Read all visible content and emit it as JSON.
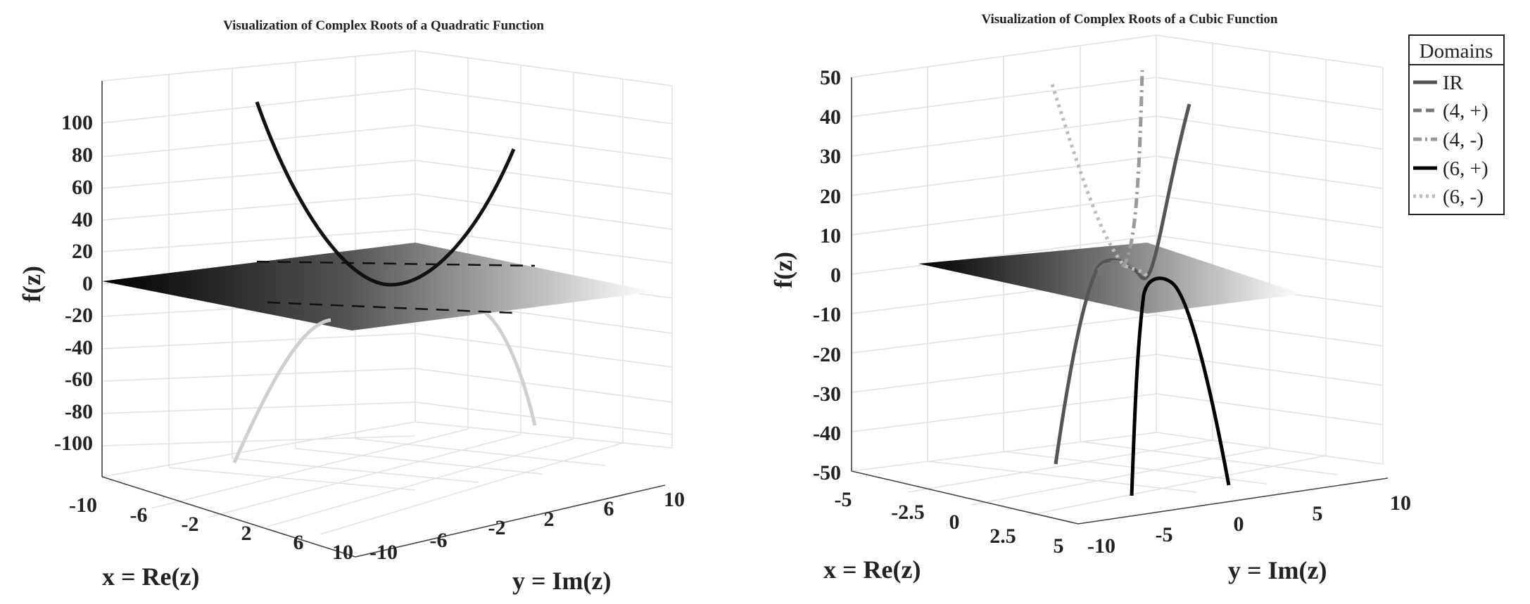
{
  "chart_data": [
    {
      "type": "3d-line",
      "title": "Visualization of Complex Roots of a Quadratic Function",
      "xlabel": "x = Re(z)",
      "ylabel": "y = Im(z)",
      "zlabel": "f(z)",
      "xlim": [
        -10,
        10
      ],
      "ylim": [
        -10,
        10
      ],
      "zlim": [
        -120,
        120
      ],
      "x_ticks": [
        "-10",
        "-6",
        "-2",
        "2",
        "6",
        "10"
      ],
      "y_ticks": [
        "-10",
        "-6",
        "-2",
        "2",
        "6",
        "10"
      ],
      "z_ticks": [
        "100",
        "80",
        "60",
        "40",
        "20",
        "0",
        "-20",
        "-40",
        "-60",
        "-80",
        "-100"
      ],
      "curves": [
        {
          "style": "solid",
          "color": "#111111",
          "x": [
            -10,
            -8,
            -6,
            -4,
            -2,
            0,
            2,
            4,
            6,
            8,
            10
          ],
          "y": [
            0,
            0,
            0,
            0,
            0,
            0,
            0,
            0,
            0,
            0,
            0
          ],
          "z": [
            100,
            64,
            36,
            16,
            4,
            0,
            4,
            16,
            36,
            64,
            100
          ]
        },
        {
          "style": "solid",
          "color": "#cccccc",
          "x": [
            0,
            0,
            0,
            0,
            0,
            0,
            0,
            0,
            0,
            0,
            0
          ],
          "y": [
            -10,
            -8,
            -6,
            -4,
            -2,
            0,
            2,
            4,
            6,
            8,
            10
          ],
          "z": [
            -100,
            -64,
            -36,
            -16,
            -4,
            0,
            -4,
            -16,
            -36,
            -64,
            -100
          ]
        },
        {
          "style": "dashed",
          "color": "#111111",
          "x": [
            -10,
            10
          ],
          "y": [
            0,
            0
          ],
          "z": [
            0,
            0
          ]
        },
        {
          "style": "dashed",
          "color": "#111111",
          "x": [
            0,
            0
          ],
          "y": [
            -10,
            10
          ],
          "z": [
            0,
            0
          ]
        }
      ]
    },
    {
      "type": "3d-line",
      "title": "Visualization of Complex Roots of a Cubic Function",
      "xlabel": "x = Re(z)",
      "ylabel": "y = Im(z)",
      "zlabel": "f(z)",
      "xlim": [
        -5,
        5
      ],
      "ylim": [
        -10,
        10
      ],
      "zlim": [
        -50,
        50
      ],
      "x_ticks": [
        "-5",
        "-2.5",
        "0",
        "2.5",
        "5"
      ],
      "y_ticks": [
        "-10",
        "-5",
        "0",
        "5",
        "10"
      ],
      "z_ticks": [
        "50",
        "40",
        "30",
        "20",
        "10",
        "0",
        "-10",
        "-20",
        "-30",
        "-40",
        "-50"
      ],
      "legend_title": "Domains",
      "legend_position": "top-right",
      "series": [
        {
          "name": "IR",
          "style": "solid",
          "color": "#555555",
          "x": [
            -5,
            -4,
            -3,
            -2,
            -1,
            0,
            1,
            2,
            3,
            4,
            5
          ],
          "y": [
            0,
            0,
            0,
            0,
            0,
            0,
            0,
            0,
            0,
            0,
            0
          ],
          "z": [
            -45,
            -24,
            -9,
            -1,
            1,
            0,
            -1,
            1,
            9,
            24,
            45
          ]
        },
        {
          "name": "(4, +)",
          "style": "dashed",
          "color": "#777777",
          "x": [
            -2,
            -1.5,
            -1,
            -0.5,
            0
          ],
          "y": [
            0,
            1,
            2,
            3,
            4
          ],
          "z": [
            1,
            3,
            4,
            3,
            2
          ]
        },
        {
          "name": "(4, -)",
          "style": "dashdot",
          "color": "#9a9a9a",
          "x": [
            0,
            0.3,
            0.6,
            0.9,
            1.2,
            1.5
          ],
          "y": [
            2,
            3,
            4,
            5,
            6,
            7
          ],
          "z": [
            2,
            5,
            10,
            20,
            35,
            50
          ]
        },
        {
          "name": "(6, +)",
          "style": "solid",
          "color": "#000000",
          "x": [
            0,
            0.5,
            1,
            1.5,
            2,
            2.5
          ],
          "y": [
            0,
            -1.5,
            -3,
            -4.5,
            -6,
            -7.5
          ],
          "z": [
            0,
            -3,
            -8,
            -17,
            -30,
            -50
          ]
        },
        {
          "name": "(6, -)",
          "style": "dotted",
          "color": "#bbbbbb",
          "x": [
            -1,
            -1.5,
            -2,
            -2.5,
            -3,
            -3.5
          ],
          "y": [
            0,
            1.5,
            3,
            4.5,
            6,
            7.5
          ],
          "z": [
            4,
            8,
            14,
            22,
            33,
            48
          ]
        }
      ]
    }
  ]
}
